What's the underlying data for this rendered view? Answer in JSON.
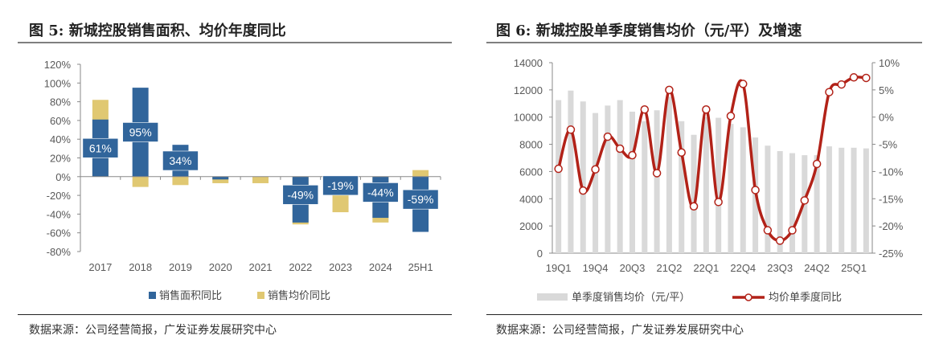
{
  "left": {
    "title": "图 5: 新城控股销售面积、均价年度同比",
    "source": "数据来源：公司经营简报，广发证券发展研究中心"
  },
  "right": {
    "title": "图 6: 新城控股单季度销售均价（元/平）及增速",
    "source": "数据来源：公司经营简报，广发证券发展研究中心"
  },
  "chart_data": [
    {
      "type": "bar",
      "title": "新城控股销售面积、均价年度同比",
      "categories": [
        "2017",
        "2018",
        "2019",
        "2020",
        "2021",
        "2022",
        "2023",
        "2024",
        "25H1"
      ],
      "series": [
        {
          "name": "销售面积同比",
          "color": "#31659B",
          "values": [
            61,
            95,
            34,
            -3,
            0,
            -49,
            -19,
            -44,
            -59
          ],
          "labels": [
            "61%",
            "95%",
            "34%",
            "",
            "",
            "-49%",
            "-19%",
            "-44%",
            "-59%"
          ]
        },
        {
          "name": "销售均价同比",
          "color": "#E0C872",
          "values": [
            82,
            -11,
            -9,
            -7,
            -7,
            -51,
            -38,
            -49,
            7
          ]
        }
      ],
      "ylim": [
        -80,
        120
      ],
      "yticks": [
        "-80%",
        "-60%",
        "-40%",
        "-20%",
        "0%",
        "20%",
        "40%",
        "60%",
        "80%",
        "100%",
        "120%"
      ],
      "legend": "bottom"
    },
    {
      "type": "bar+line",
      "title": "新城控股单季度销售均价（元/平）及增速",
      "categories": [
        "19Q1",
        "19Q2",
        "19Q3",
        "19Q4",
        "20Q1",
        "20Q2",
        "20Q3",
        "20Q4",
        "21Q1",
        "21Q2",
        "21Q3",
        "21Q4",
        "22Q1",
        "22Q2",
        "22Q3",
        "22Q4",
        "23Q1",
        "23Q2",
        "23Q3",
        "23Q4",
        "24Q1",
        "24Q2",
        "24Q3",
        "24Q4",
        "25Q1",
        "25Q2"
      ],
      "xtick_labels": [
        "19Q1",
        "19Q4",
        "20Q3",
        "21Q2",
        "22Q1",
        "22Q4",
        "23Q3",
        "24Q2",
        "25Q1"
      ],
      "series": [
        {
          "name": "单季度销售均价（元/平）",
          "axis": "left",
          "color": "#D9D9D9",
          "values": [
            11250,
            11950,
            11150,
            10300,
            10850,
            11250,
            10400,
            9700,
            10500,
            11500,
            9700,
            8700,
            10000,
            9950,
            9500,
            9250,
            8500,
            7900,
            7500,
            7350,
            7200,
            7200,
            7850,
            7750,
            7750,
            7700
          ]
        },
        {
          "name": "均价单季度同比",
          "axis": "right",
          "color": "#B22218",
          "values": [
            -9.5,
            -2.3,
            -13.5,
            -9.6,
            -3.6,
            -5.8,
            -7.0,
            1.4,
            -10.3,
            5.0,
            -6.5,
            -16.4,
            1.4,
            -15.6,
            0.2,
            6.1,
            -13.4,
            -20.8,
            -22.7,
            -20.8,
            -15.3,
            -8.6,
            4.6,
            6.0,
            7.3,
            7.2
          ]
        }
      ],
      "ylim_left": [
        0,
        14000
      ],
      "yticks_left": [
        "0",
        "2000",
        "4000",
        "6000",
        "8000",
        "10000",
        "12000",
        "14000"
      ],
      "ylim_right": [
        -25,
        10
      ],
      "yticks_right": [
        "-25%",
        "-20%",
        "-15%",
        "-10%",
        "-5%",
        "0%",
        "5%",
        "10%"
      ],
      "legend": "bottom"
    }
  ]
}
